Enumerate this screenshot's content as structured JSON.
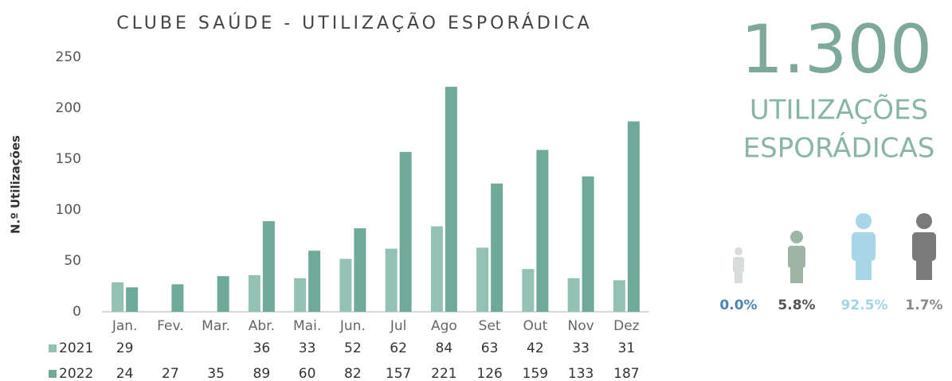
{
  "chart_data": {
    "type": "bar",
    "title": "CLUBE SAÚDE  - UTILIZAÇÃO ESPORÁDICA",
    "y_label": "N.º Utilizações",
    "categories": [
      "Jan.",
      "Fev.",
      "Mar.",
      "Abr.",
      "Mai.",
      "Jun.",
      "Jul",
      "Ago",
      "Set",
      "Out",
      "Nov",
      "Dez"
    ],
    "series": [
      {
        "name": "2021",
        "color": "#93c1b4",
        "values": [
          29,
          null,
          null,
          36,
          33,
          52,
          62,
          84,
          63,
          42,
          33,
          31
        ]
      },
      {
        "name": "2022",
        "color": "#6fa99a",
        "values": [
          24,
          27,
          35,
          89,
          60,
          82,
          157,
          221,
          126,
          159,
          133,
          187
        ]
      }
    ],
    "ylim": [
      0,
      250
    ],
    "yticks": [
      0,
      50,
      100,
      150,
      200,
      250
    ],
    "grid": false
  },
  "summary": {
    "total": "1.300",
    "line1": "UTILIZAÇÕES",
    "line2": "ESPORÁDICAS",
    "stats": [
      {
        "label": "0.0%",
        "color": "#4f83b3"
      },
      {
        "label": "5.8%",
        "color": "#555555"
      },
      {
        "label": "92.5%",
        "color": "#a3d4e4"
      },
      {
        "label": "1.7%",
        "color": "#8a8a8a"
      }
    ]
  }
}
